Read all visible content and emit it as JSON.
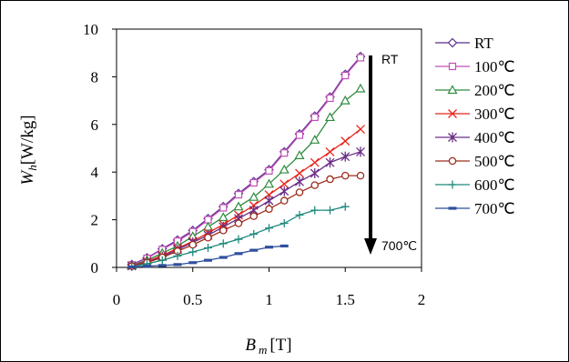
{
  "chart_data": {
    "type": "line",
    "xlabel_main": "B",
    "xlabel_sub": "m",
    "xlabel_unit": "[T]",
    "ylabel_main": "W",
    "ylabel_sub": "h",
    "ylabel_unit": "[W/kg]",
    "xlim": [
      0,
      2
    ],
    "ylim": [
      0,
      10
    ],
    "xticks": [
      0,
      0.5,
      1,
      1.5,
      2
    ],
    "xtick_labels": [
      "0",
      "0.5",
      "1",
      "1.5",
      "2"
    ],
    "yticks": [
      0,
      2,
      4,
      6,
      8,
      10
    ],
    "ytick_labels": [
      "0",
      "2",
      "4",
      "6",
      "8",
      "10"
    ],
    "grid": false,
    "legend_position": "right",
    "annotations": {
      "top": "RT",
      "bottom": "700℃"
    },
    "series": [
      {
        "name": "RT",
        "color": "#5b2d8e",
        "marker": "diamond",
        "x": [
          0.1,
          0.2,
          0.3,
          0.4,
          0.5,
          0.6,
          0.7,
          0.8,
          0.9,
          1.0,
          1.1,
          1.2,
          1.3,
          1.4,
          1.5,
          1.6
        ],
        "y": [
          0.12,
          0.4,
          0.78,
          1.15,
          1.55,
          2.05,
          2.55,
          3.1,
          3.6,
          4.1,
          4.85,
          5.6,
          6.35,
          7.15,
          8.1,
          8.85
        ]
      },
      {
        "name": "100℃",
        "color": "#c04fb6",
        "marker": "square",
        "x": [
          0.1,
          0.2,
          0.3,
          0.4,
          0.5,
          0.6,
          0.7,
          0.8,
          0.9,
          1.0,
          1.1,
          1.2,
          1.3,
          1.4,
          1.5,
          1.6
        ],
        "y": [
          0.1,
          0.38,
          0.75,
          1.1,
          1.5,
          2.0,
          2.5,
          3.05,
          3.55,
          4.05,
          4.8,
          5.55,
          6.3,
          7.1,
          8.05,
          8.8
        ]
      },
      {
        "name": "200℃",
        "color": "#2e8b3e",
        "marker": "triangle",
        "x": [
          0.1,
          0.2,
          0.3,
          0.4,
          0.5,
          0.6,
          0.7,
          0.8,
          0.9,
          1.0,
          1.1,
          1.2,
          1.3,
          1.4,
          1.5,
          1.6
        ],
        "y": [
          0.08,
          0.3,
          0.6,
          0.9,
          1.3,
          1.7,
          2.1,
          2.55,
          2.95,
          3.5,
          4.1,
          4.7,
          5.35,
          6.3,
          7.0,
          7.5
        ]
      },
      {
        "name": "300℃",
        "color": "#e8251b",
        "marker": "x",
        "x": [
          0.1,
          0.2,
          0.3,
          0.4,
          0.5,
          0.6,
          0.7,
          0.8,
          0.9,
          1.0,
          1.1,
          1.2,
          1.3,
          1.4,
          1.5,
          1.6
        ],
        "y": [
          0.07,
          0.25,
          0.5,
          0.8,
          1.1,
          1.45,
          1.8,
          2.2,
          2.6,
          3.05,
          3.5,
          3.95,
          4.4,
          4.85,
          5.3,
          5.8
        ]
      },
      {
        "name": "400℃",
        "color": "#6a2f86",
        "marker": "star",
        "x": [
          0.1,
          0.2,
          0.3,
          0.4,
          0.5,
          0.6,
          0.7,
          0.8,
          0.9,
          1.0,
          1.1,
          1.2,
          1.3,
          1.4,
          1.5,
          1.6
        ],
        "y": [
          0.06,
          0.22,
          0.45,
          0.75,
          1.05,
          1.35,
          1.7,
          2.05,
          2.4,
          2.8,
          3.2,
          3.6,
          3.95,
          4.4,
          4.65,
          4.85
        ]
      },
      {
        "name": "500℃",
        "color": "#9c2f1e",
        "marker": "circle",
        "x": [
          0.1,
          0.2,
          0.3,
          0.4,
          0.5,
          0.6,
          0.7,
          0.8,
          0.9,
          1.0,
          1.1,
          1.2,
          1.3,
          1.4,
          1.5,
          1.6
        ],
        "y": [
          0.05,
          0.2,
          0.42,
          0.68,
          0.95,
          1.25,
          1.55,
          1.85,
          2.15,
          2.45,
          2.8,
          3.15,
          3.45,
          3.7,
          3.85,
          3.85
        ]
      },
      {
        "name": "600℃",
        "color": "#1f8a7e",
        "marker": "plus",
        "x": [
          0.1,
          0.2,
          0.3,
          0.4,
          0.5,
          0.6,
          0.7,
          0.8,
          0.9,
          1.0,
          1.1,
          1.2,
          1.3,
          1.4,
          1.5
        ],
        "y": [
          0.04,
          0.15,
          0.3,
          0.48,
          0.65,
          0.82,
          1.0,
          1.18,
          1.4,
          1.65,
          1.85,
          2.2,
          2.4,
          2.4,
          2.55
        ]
      },
      {
        "name": "700℃",
        "color": "#2f4f9e",
        "marker": "dash",
        "x": [
          0.1,
          0.2,
          0.3,
          0.4,
          0.5,
          0.6,
          0.7,
          0.8,
          0.9,
          1.0,
          1.1
        ],
        "y": [
          0.02,
          0.05,
          0.08,
          0.12,
          0.2,
          0.3,
          0.42,
          0.58,
          0.72,
          0.85,
          0.9
        ]
      }
    ]
  }
}
